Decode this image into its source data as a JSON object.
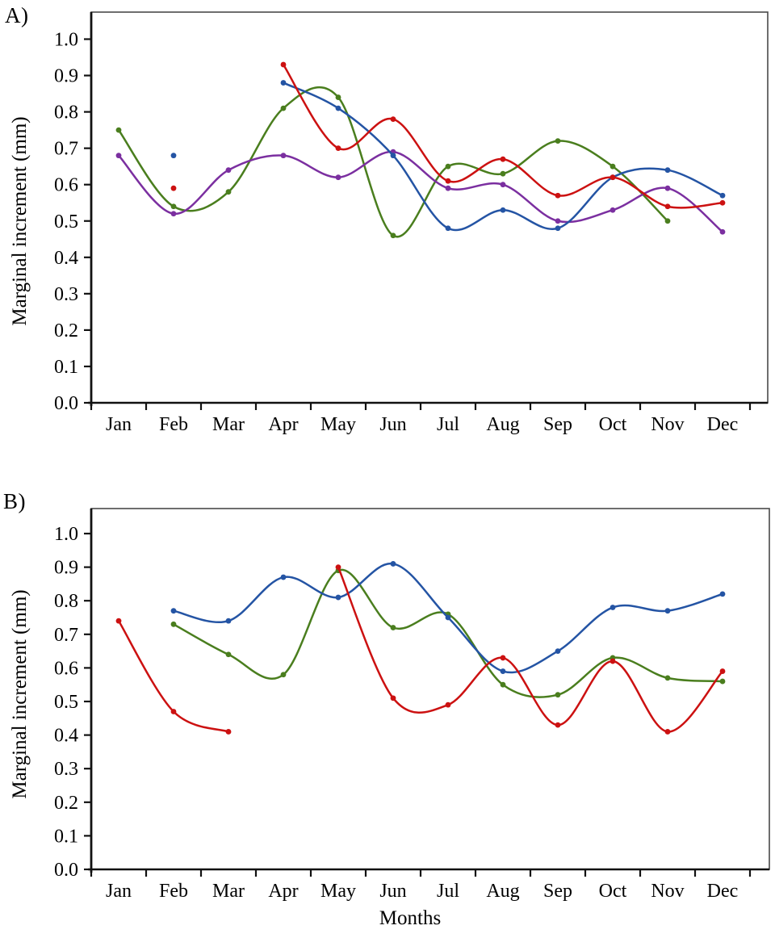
{
  "figure": {
    "panel_a_label": "A)",
    "panel_b_label": "B)",
    "y_axis_title_a": "Marginal increment (mm)",
    "y_axis_title_b": "Marginal increment (mm)",
    "x_axis_title": "Months"
  },
  "colors": {
    "blue": "#2454a4",
    "red": "#cc1111",
    "green": "#4a7e1e",
    "purple": "#7b2fa0",
    "axis": "#111111",
    "box": "#4a4a4a"
  },
  "chart_data": [
    {
      "type": "line",
      "panel": "A",
      "categories": [
        "Jan",
        "Feb",
        "Mar",
        "Apr",
        "May",
        "Jun",
        "Jul",
        "Aug",
        "Sep",
        "Oct",
        "Nov",
        "Dec"
      ],
      "ylabel": "Marginal increment (mm)",
      "xlabel": "",
      "ylim": [
        0.0,
        1.0
      ],
      "ytick_step": 0.1,
      "ytick_labels": [
        "0.0",
        "0.1",
        "0.2",
        "0.3",
        "0.4",
        "0.5",
        "0.6",
        "0.7",
        "0.8",
        "0.9",
        "1.0"
      ],
      "grid": false,
      "legend": "none",
      "series": [
        {
          "name": "green",
          "color": "#4a7e1e",
          "values": [
            0.75,
            0.54,
            0.58,
            0.81,
            0.84,
            0.46,
            0.65,
            0.63,
            0.72,
            0.65,
            0.5,
            null
          ]
        },
        {
          "name": "purple",
          "color": "#7b2fa0",
          "values": [
            0.68,
            0.52,
            0.64,
            0.68,
            0.62,
            0.69,
            0.59,
            0.6,
            0.5,
            0.53,
            0.59,
            0.47
          ]
        },
        {
          "name": "blue",
          "color": "#2454a4",
          "values": [
            null,
            0.68,
            null,
            0.88,
            0.81,
            0.68,
            0.48,
            0.53,
            0.48,
            0.62,
            0.64,
            0.57
          ]
        },
        {
          "name": "red",
          "color": "#cc1111",
          "values": [
            null,
            0.59,
            null,
            0.93,
            0.7,
            0.78,
            0.61,
            0.67,
            0.57,
            0.62,
            0.54,
            0.55
          ]
        }
      ]
    },
    {
      "type": "line",
      "panel": "B",
      "categories": [
        "Jan",
        "Feb",
        "Mar",
        "Apr",
        "May",
        "Jun",
        "Jul",
        "Aug",
        "Sep",
        "Oct",
        "Nov",
        "Dec"
      ],
      "ylabel": "Marginal increment (mm)",
      "xlabel": "Months",
      "ylim": [
        0.0,
        1.0
      ],
      "ytick_step": 0.1,
      "ytick_labels": [
        "0.0",
        "0.1",
        "0.2",
        "0.3",
        "0.4",
        "0.5",
        "0.6",
        "0.7",
        "0.8",
        "0.9",
        "1.0"
      ],
      "grid": false,
      "legend": "none",
      "series": [
        {
          "name": "green",
          "color": "#4a7e1e",
          "values": [
            null,
            0.73,
            0.64,
            0.58,
            0.89,
            0.72,
            0.76,
            0.55,
            0.52,
            0.63,
            0.57,
            0.56
          ]
        },
        {
          "name": "blue",
          "color": "#2454a4",
          "values": [
            null,
            0.77,
            0.74,
            0.87,
            0.81,
            0.91,
            0.75,
            0.59,
            0.65,
            0.78,
            0.77,
            0.82
          ]
        },
        {
          "name": "red",
          "color": "#cc1111",
          "values": [
            0.74,
            0.47,
            0.41,
            null,
            0.9,
            0.51,
            0.49,
            0.63,
            0.43,
            0.62,
            0.41,
            0.59
          ]
        }
      ]
    }
  ]
}
